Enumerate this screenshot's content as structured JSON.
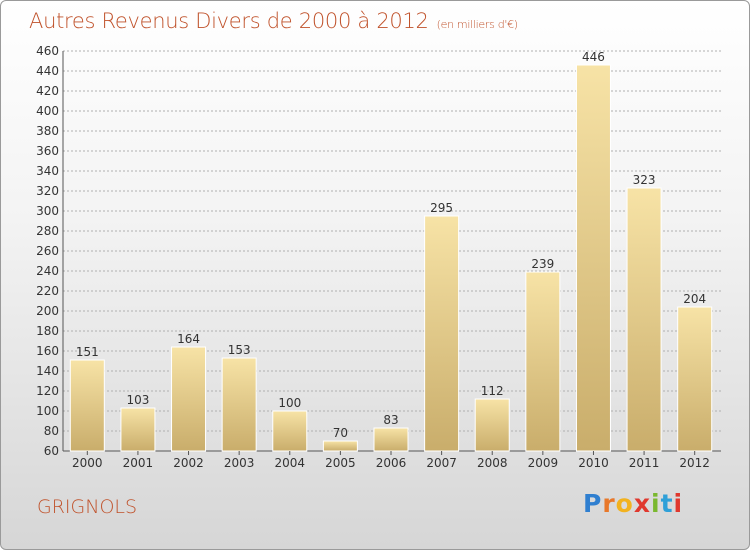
{
  "header": {
    "title": "Autres Revenus Divers de 2000 à 2012",
    "unit": "(en milliers d'€)"
  },
  "location": "GRIGNOLS",
  "brand": {
    "letters": [
      "P",
      "r",
      "o",
      "x",
      "i",
      "t",
      "i"
    ],
    "colors": [
      "#2f7fd0",
      "#e8782a",
      "#f2b21f",
      "#e0382e",
      "#7ab82f",
      "#2fa0d8",
      "#e0382e"
    ]
  },
  "colors": {
    "title": "#c0522b",
    "bar_light": "#f7e3a6",
    "bar_dark": "#c9ad6b",
    "grid": "#b0b0b0"
  },
  "chart_data": {
    "type": "bar",
    "categories": [
      "2000",
      "2001",
      "2002",
      "2003",
      "2004",
      "2005",
      "2006",
      "2007",
      "2008",
      "2009",
      "2010",
      "2011",
      "2012"
    ],
    "values": [
      151,
      103,
      164,
      153,
      100,
      70,
      83,
      295,
      112,
      239,
      446,
      323,
      204
    ],
    "ylim": [
      60,
      460
    ],
    "yticks": [
      60,
      80,
      100,
      120,
      140,
      160,
      180,
      200,
      220,
      240,
      260,
      280,
      300,
      320,
      340,
      360,
      380,
      400,
      420,
      440,
      460
    ],
    "grid": true
  }
}
